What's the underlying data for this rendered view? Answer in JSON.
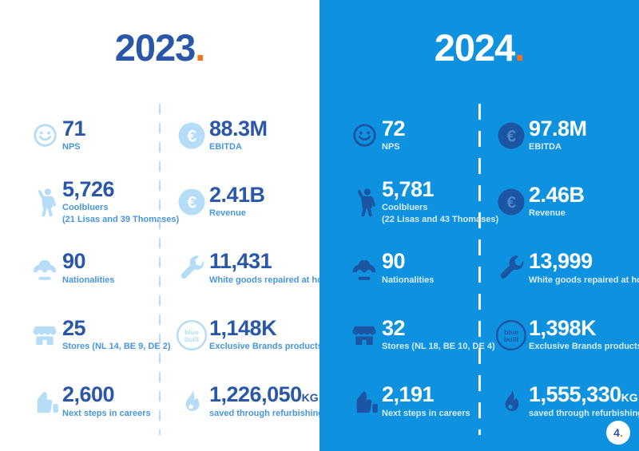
{
  "document": {
    "page_number": "4",
    "page_number_dot": "."
  },
  "colors": {
    "brand_blue": "#0E92DF",
    "dark_blue": "#2B57A8",
    "icon_dark_blue": "#1C55A3",
    "icon_light_blue": "#B5DDF7",
    "label_blue": "#4796DC",
    "accent_orange": "#F4731B",
    "white": "#FFFFFF"
  },
  "bluebuilt_logo_text": {
    "line1": "blue",
    "line2": "built"
  },
  "panels": [
    {
      "year": "2023",
      "dot": ".",
      "stats_left": [
        {
          "icon": "smiley",
          "value": "71",
          "label": "NPS"
        },
        {
          "icon": "person",
          "value": "5,726",
          "label": "Coolbluers",
          "sublabel": "(21 Lisas and 39 Thomases)"
        },
        {
          "icon": "car",
          "value": "90",
          "label": "Nationalities"
        },
        {
          "icon": "store",
          "value": "25",
          "label": "Stores (NL 14, BE 9, DE 2)"
        },
        {
          "icon": "thumbs-up",
          "value": "2,600",
          "label": "Next steps in careers"
        }
      ],
      "stats_right": [
        {
          "icon": "euro-coin",
          "value": "88.3M",
          "label": "EBITDA"
        },
        {
          "icon": "euro-coin",
          "value": "2.41B",
          "label": "Revenue"
        },
        {
          "icon": "wrench",
          "value": "11,431",
          "label": "White goods repaired at home"
        },
        {
          "icon": "bluebuilt",
          "value": "1,148K",
          "label": "Exclusive Brands products sold"
        },
        {
          "icon": "flame",
          "value": "1,226,050",
          "value_suffix": "KG",
          "label": "saved through refurbishing"
        }
      ]
    },
    {
      "year": "2024",
      "dot": ".",
      "stats_left": [
        {
          "icon": "smiley",
          "value": "72",
          "label": "NPS"
        },
        {
          "icon": "person",
          "value": "5,781",
          "label": "Coolbluers",
          "sublabel": "(22 Lisas and 43 Thomases)"
        },
        {
          "icon": "car",
          "value": "90",
          "label": "Nationalities"
        },
        {
          "icon": "store",
          "value": "32",
          "label": "Stores (NL 18, BE 10, DE 4)"
        },
        {
          "icon": "thumbs-up",
          "value": "2,191",
          "label": "Next steps in careers"
        }
      ],
      "stats_right": [
        {
          "icon": "euro-coin",
          "value": "97.8M",
          "label": "EBITDA"
        },
        {
          "icon": "euro-coin",
          "value": "2.46B",
          "label": "Revenue"
        },
        {
          "icon": "wrench",
          "value": "13,999",
          "label": "White goods repaired at home"
        },
        {
          "icon": "bluebuilt",
          "value": "1,398K",
          "label": "Exclusive Brands products sold"
        },
        {
          "icon": "flame",
          "value": "1,555,330",
          "value_suffix": "KG",
          "label": "saved through refurbishing"
        }
      ]
    }
  ]
}
